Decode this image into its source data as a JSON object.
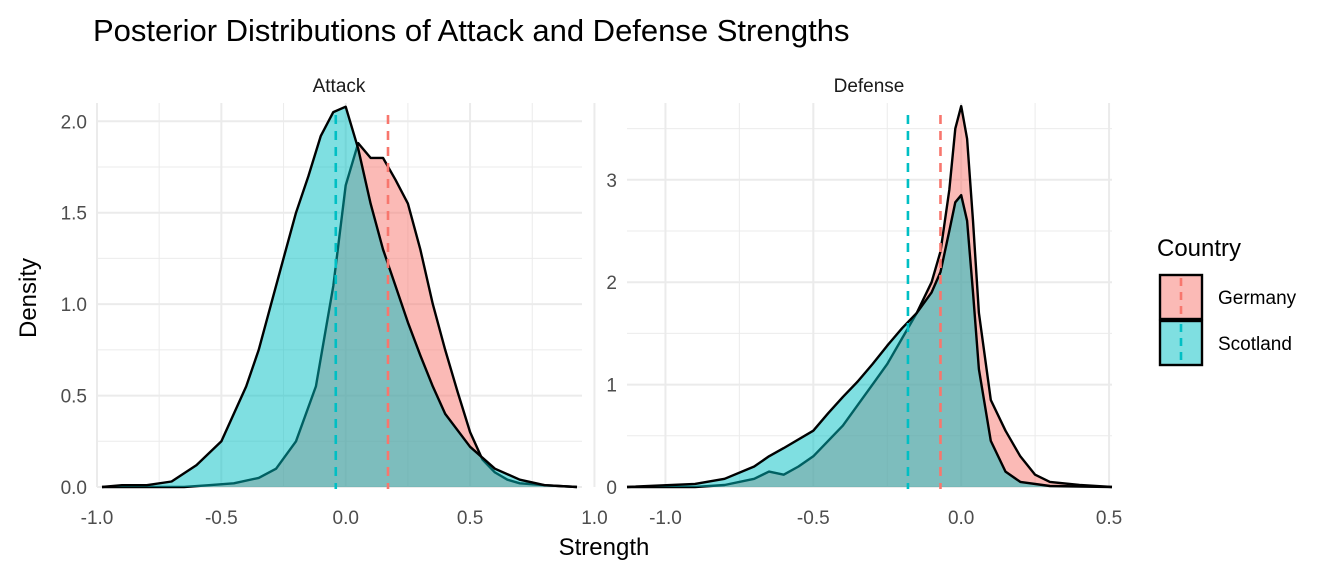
{
  "chart_data": {
    "type": "area",
    "title": "Posterior Distributions of Attack and Defense Strengths",
    "xlabel": "Strength",
    "ylabel": "Density",
    "legend": {
      "title": "Country",
      "position": "right"
    },
    "colors": {
      "Germany": "#F8766D",
      "Scotland": "#00BFC4"
    },
    "panels": [
      {
        "name": "Attack",
        "xlim": [
          -1.0,
          0.95
        ],
        "ylim": [
          0,
          2.1
        ],
        "xticks": [
          -1.0,
          -0.5,
          0.0,
          0.5,
          1.0
        ],
        "xtick_labels": [
          "-1.0",
          "-0.5",
          "0.0",
          "0.5",
          "1.0"
        ],
        "yticks": [
          0.0,
          0.5,
          1.0,
          1.5,
          2.0
        ],
        "ytick_labels": [
          "0.0",
          "0.5",
          "1.0",
          "1.5",
          "2.0"
        ],
        "series": [
          {
            "name": "Germany",
            "mean": 0.17,
            "x": [
              -0.98,
              -0.85,
              -0.75,
              -0.65,
              -0.55,
              -0.45,
              -0.35,
              -0.28,
              -0.2,
              -0.12,
              -0.05,
              0.0,
              0.05,
              0.1,
              0.15,
              0.2,
              0.25,
              0.3,
              0.35,
              0.4,
              0.45,
              0.5,
              0.55,
              0.6,
              0.65,
              0.7,
              0.8,
              0.93
            ],
            "y": [
              0.0,
              0.0,
              0.0,
              0.0,
              0.01,
              0.02,
              0.05,
              0.1,
              0.25,
              0.55,
              1.1,
              1.65,
              1.88,
              1.8,
              1.8,
              1.68,
              1.55,
              1.3,
              1.0,
              0.75,
              0.52,
              0.3,
              0.15,
              0.08,
              0.04,
              0.02,
              0.01,
              0.0
            ]
          },
          {
            "name": "Scotland",
            "mean": -0.04,
            "x": [
              -0.98,
              -0.9,
              -0.8,
              -0.7,
              -0.6,
              -0.5,
              -0.4,
              -0.35,
              -0.3,
              -0.25,
              -0.2,
              -0.15,
              -0.1,
              -0.05,
              0.0,
              0.05,
              0.1,
              0.15,
              0.2,
              0.25,
              0.3,
              0.35,
              0.4,
              0.5,
              0.6,
              0.7,
              0.8,
              0.93
            ],
            "y": [
              0.0,
              0.01,
              0.01,
              0.03,
              0.12,
              0.25,
              0.55,
              0.75,
              1.0,
              1.25,
              1.5,
              1.7,
              1.92,
              2.05,
              2.08,
              1.85,
              1.55,
              1.3,
              1.1,
              0.9,
              0.72,
              0.55,
              0.4,
              0.22,
              0.1,
              0.04,
              0.01,
              0.0
            ]
          }
        ]
      },
      {
        "name": "Defense",
        "xlim": [
          -1.13,
          0.51
        ],
        "ylim": [
          0,
          3.75
        ],
        "xticks": [
          -1.0,
          -0.5,
          0.0,
          0.5
        ],
        "xtick_labels": [
          "-1.0",
          "-0.5",
          "0.0",
          "0.5"
        ],
        "yticks": [
          0,
          1,
          2,
          3
        ],
        "ytick_labels": [
          "0",
          "1",
          "2",
          "3"
        ],
        "series": [
          {
            "name": "Germany",
            "mean": -0.07,
            "x": [
              -1.13,
              -0.9,
              -0.8,
              -0.7,
              -0.65,
              -0.6,
              -0.55,
              -0.5,
              -0.45,
              -0.4,
              -0.35,
              -0.3,
              -0.25,
              -0.2,
              -0.15,
              -0.1,
              -0.07,
              -0.04,
              -0.02,
              0.0,
              0.02,
              0.04,
              0.06,
              0.1,
              0.15,
              0.2,
              0.25,
              0.3,
              0.4,
              0.51
            ],
            "y": [
              0.0,
              0.0,
              0.02,
              0.08,
              0.15,
              0.12,
              0.2,
              0.3,
              0.45,
              0.6,
              0.8,
              1.0,
              1.2,
              1.45,
              1.7,
              2.0,
              2.3,
              2.9,
              3.5,
              3.72,
              3.4,
              2.6,
              1.7,
              0.85,
              0.55,
              0.3,
              0.12,
              0.05,
              0.02,
              0.0
            ]
          },
          {
            "name": "Scotland",
            "mean": -0.18,
            "x": [
              -1.13,
              -0.9,
              -0.8,
              -0.7,
              -0.65,
              -0.6,
              -0.5,
              -0.45,
              -0.4,
              -0.35,
              -0.3,
              -0.25,
              -0.2,
              -0.15,
              -0.1,
              -0.07,
              -0.04,
              -0.02,
              0.0,
              0.02,
              0.04,
              0.06,
              0.1,
              0.15,
              0.2,
              0.3,
              0.51
            ],
            "y": [
              0.0,
              0.03,
              0.08,
              0.2,
              0.3,
              0.38,
              0.55,
              0.72,
              0.88,
              1.03,
              1.2,
              1.38,
              1.55,
              1.7,
              1.9,
              2.1,
              2.5,
              2.78,
              2.85,
              2.6,
              1.9,
              1.15,
              0.45,
              0.15,
              0.05,
              0.01,
              0.0
            ]
          }
        ]
      }
    ]
  }
}
